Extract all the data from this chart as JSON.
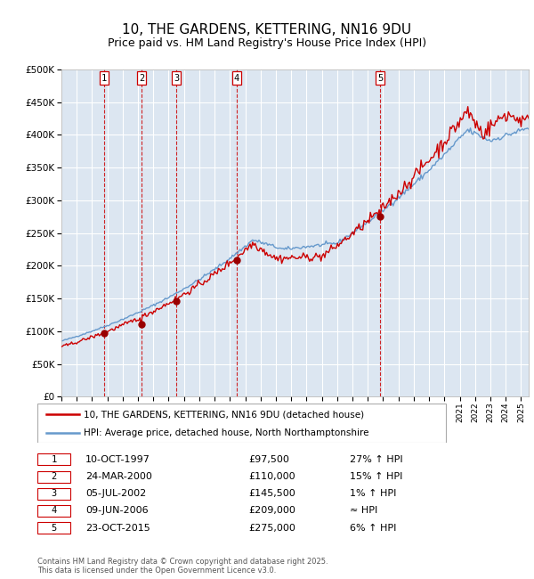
{
  "title": "10, THE GARDENS, KETTERING, NN16 9DU",
  "subtitle": "Price paid vs. HM Land Registry's House Price Index (HPI)",
  "title_fontsize": 11,
  "subtitle_fontsize": 9,
  "bg_color": "#dce6f1",
  "fig_bg_color": "#ffffff",
  "grid_color": "#ffffff",
  "ylim": [
    0,
    500000
  ],
  "yticks": [
    0,
    50000,
    100000,
    150000,
    200000,
    250000,
    300000,
    350000,
    400000,
    450000,
    500000
  ],
  "transactions": [
    {
      "num": 1,
      "date": "10-OCT-1997",
      "price": 97500,
      "hpi_rel": "27% ↑ HPI",
      "x_year": 1997.78
    },
    {
      "num": 2,
      "date": "24-MAR-2000",
      "price": 110000,
      "hpi_rel": "15% ↑ HPI",
      "x_year": 2000.23
    },
    {
      "num": 3,
      "date": "05-JUL-2002",
      "price": 145500,
      "hpi_rel": "1% ↑ HPI",
      "x_year": 2002.51
    },
    {
      "num": 4,
      "date": "09-JUN-2006",
      "price": 209000,
      "hpi_rel": "≈ HPI",
      "x_year": 2006.44
    },
    {
      "num": 5,
      "date": "23-OCT-2015",
      "price": 275000,
      "hpi_rel": "6% ↑ HPI",
      "x_year": 2015.81
    }
  ],
  "legend_line1": "10, THE GARDENS, KETTERING, NN16 9DU (detached house)",
  "legend_line2": "HPI: Average price, detached house, North Northamptonshire",
  "footer": "Contains HM Land Registry data © Crown copyright and database right 2025.\nThis data is licensed under the Open Government Licence v3.0.",
  "red_color": "#cc0000",
  "blue_color": "#6699cc",
  "marker_color": "#990000",
  "xmin": 1995,
  "xmax": 2025.5
}
